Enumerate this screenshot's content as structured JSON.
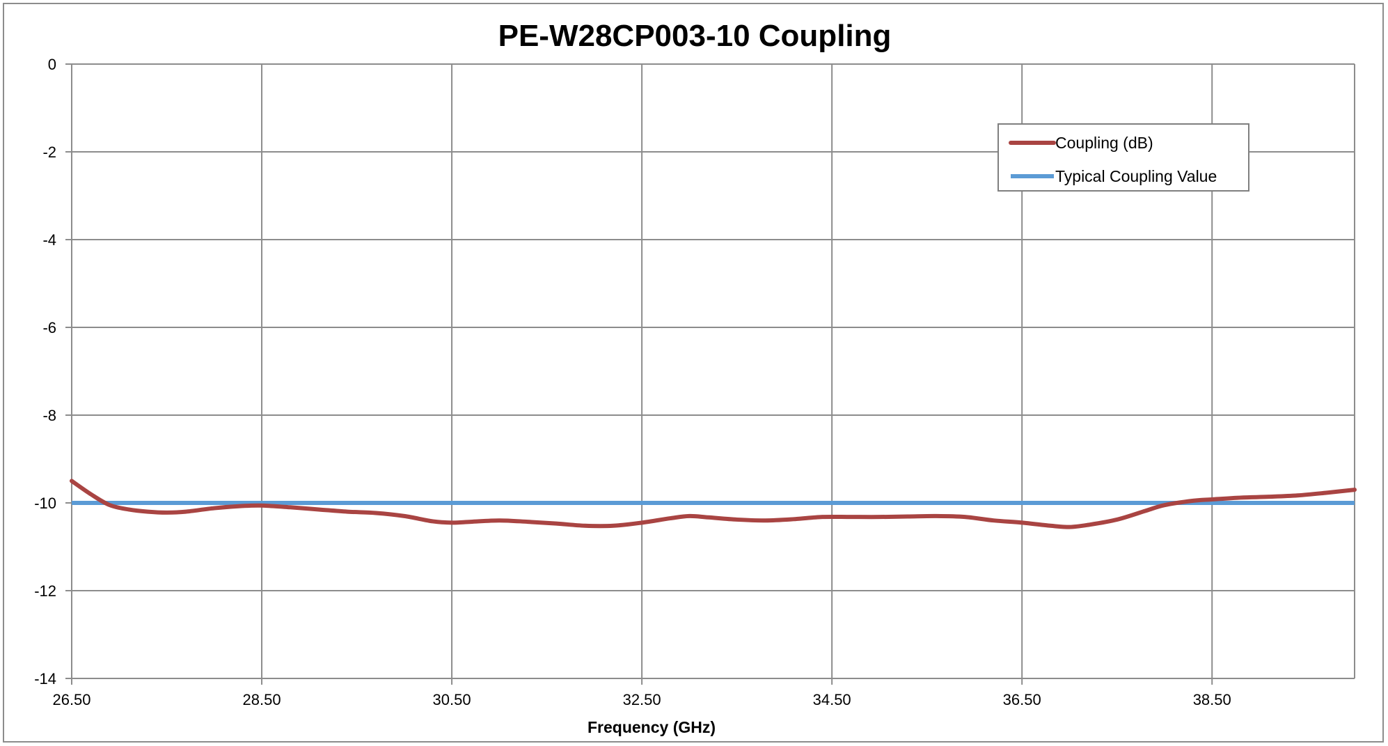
{
  "chart_data": {
    "type": "line",
    "title": "PE-W28CP003-10 Coupling",
    "xlabel": "Frequency (GHz)",
    "ylabel": "",
    "xlim": [
      26.5,
      40.0
    ],
    "ylim": [
      -14,
      0
    ],
    "x_ticks": [
      "26.50",
      "28.50",
      "30.50",
      "32.50",
      "34.50",
      "36.50",
      "38.50"
    ],
    "x_tick_values": [
      26.5,
      28.5,
      30.5,
      32.5,
      34.5,
      36.5,
      38.5
    ],
    "y_ticks": [
      "0",
      "-2",
      "-4",
      "-6",
      "-8",
      "-10",
      "-12",
      "-14"
    ],
    "y_tick_values": [
      0,
      -2,
      -4,
      -6,
      -8,
      -10,
      -12,
      -14
    ],
    "grid": true,
    "legend_position": "top-right",
    "series": [
      {
        "name": "Coupling (dB)",
        "color": "#a94442",
        "x": [
          26.5,
          26.7,
          26.9,
          27.1,
          27.3,
          27.5,
          27.7,
          28.0,
          28.3,
          28.5,
          28.8,
          29.1,
          29.4,
          29.7,
          30.0,
          30.3,
          30.5,
          30.7,
          31.0,
          31.3,
          31.6,
          31.9,
          32.2,
          32.5,
          32.8,
          33.0,
          33.2,
          33.5,
          33.8,
          34.1,
          34.4,
          34.7,
          35.0,
          35.3,
          35.6,
          35.9,
          36.2,
          36.5,
          36.8,
          37.0,
          37.2,
          37.5,
          37.8,
          38.0,
          38.3,
          38.5,
          38.8,
          39.1,
          39.4,
          39.7,
          40.0
        ],
        "values": [
          -9.5,
          -9.8,
          -10.05,
          -10.15,
          -10.2,
          -10.22,
          -10.2,
          -10.12,
          -10.07,
          -10.06,
          -10.1,
          -10.15,
          -10.2,
          -10.23,
          -10.3,
          -10.42,
          -10.45,
          -10.43,
          -10.4,
          -10.43,
          -10.47,
          -10.52,
          -10.52,
          -10.45,
          -10.35,
          -10.3,
          -10.33,
          -10.38,
          -10.4,
          -10.37,
          -10.32,
          -10.32,
          -10.32,
          -10.31,
          -10.3,
          -10.32,
          -10.4,
          -10.45,
          -10.52,
          -10.55,
          -10.5,
          -10.38,
          -10.18,
          -10.05,
          -9.95,
          -9.92,
          -9.88,
          -9.86,
          -9.83,
          -9.77,
          -9.7
        ]
      },
      {
        "name": "Typical Coupling Value",
        "color": "#5b9bd5",
        "x": [
          26.5,
          40.0
        ],
        "values": [
          -10,
          -10
        ]
      }
    ]
  }
}
